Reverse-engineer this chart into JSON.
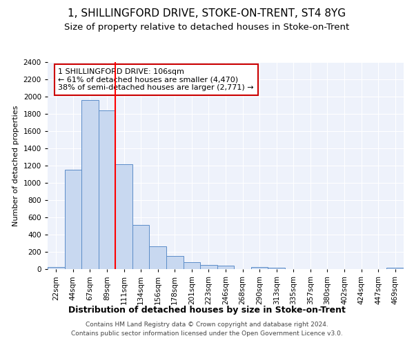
{
  "title1": "1, SHILLINGFORD DRIVE, STOKE-ON-TRENT, ST4 8YG",
  "title2": "Size of property relative to detached houses in Stoke-on-Trent",
  "xlabel": "Distribution of detached houses by size in Stoke-on-Trent",
  "ylabel": "Number of detached properties",
  "bar_color": "#c8d8f0",
  "bar_edge_color": "#5b8cc8",
  "categories": [
    "22sqm",
    "44sqm",
    "67sqm",
    "89sqm",
    "111sqm",
    "134sqm",
    "156sqm",
    "178sqm",
    "201sqm",
    "223sqm",
    "246sqm",
    "268sqm",
    "290sqm",
    "313sqm",
    "335sqm",
    "357sqm",
    "380sqm",
    "402sqm",
    "424sqm",
    "447sqm",
    "469sqm"
  ],
  "values": [
    28,
    1150,
    1960,
    1840,
    1220,
    510,
    265,
    155,
    80,
    48,
    42,
    0,
    22,
    15,
    0,
    0,
    0,
    0,
    0,
    0,
    20
  ],
  "red_line_x": 3.5,
  "annotation_text": "1 SHILLINGFORD DRIVE: 106sqm\n← 61% of detached houses are smaller (4,470)\n38% of semi-detached houses are larger (2,771) →",
  "annotation_box_color": "#ffffff",
  "annotation_box_edge": "#cc0000",
  "ylim": [
    0,
    2400
  ],
  "yticks": [
    0,
    200,
    400,
    600,
    800,
    1000,
    1200,
    1400,
    1600,
    1800,
    2000,
    2200,
    2400
  ],
  "footer1": "Contains HM Land Registry data © Crown copyright and database right 2024.",
  "footer2": "Contains public sector information licensed under the Open Government Licence v3.0.",
  "bg_color": "#eef2fb",
  "title1_fontsize": 11,
  "title2_fontsize": 9.5,
  "xlabel_fontsize": 9,
  "ylabel_fontsize": 8,
  "tick_fontsize": 7.5,
  "annotation_fontsize": 8,
  "footer_fontsize": 6.5
}
